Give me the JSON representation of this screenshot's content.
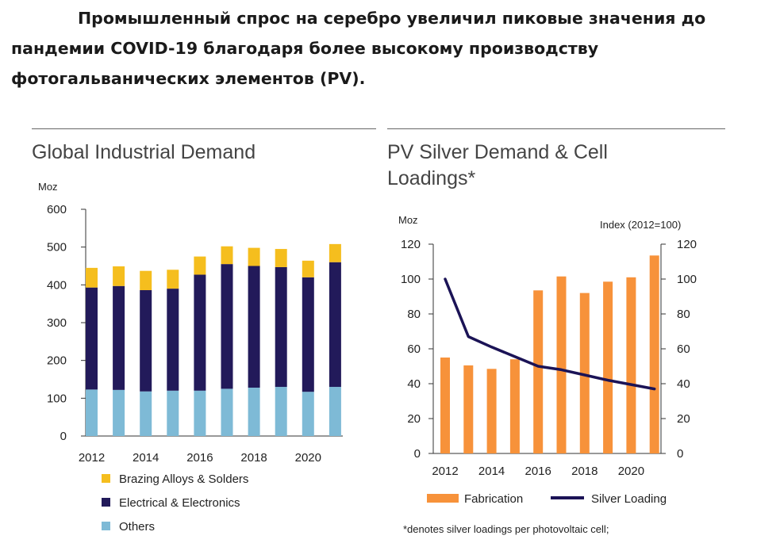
{
  "headline": "Промышленный спрос на серебро увеличил пиковые значения до пандемии COVID-19 благодаря более высокому производству фотогальванических элементов (PV).",
  "headline_lines": [
    "Промышленный спрос на серебро увеличил пиковые значения до",
    "пандемии COVID-19 благодаря более высокому производству",
    "фотогальванических элементов (PV)."
  ],
  "colors": {
    "brazing": "#f5be1e",
    "electrical": "#221a5a",
    "others": "#7ebad6",
    "fabrication": "#f7923a",
    "silver_loading": "#1b1356",
    "axis": "#333333",
    "rule": "#666666"
  },
  "chart_data": [
    {
      "type": "bar",
      "stacked": true,
      "title": "Global Industrial Demand",
      "ylabel": "Moz",
      "ylim": [
        0,
        600
      ],
      "yticks": [
        0,
        100,
        200,
        300,
        400,
        500,
        600
      ],
      "xtick_labels": [
        "2012",
        "2014",
        "2016",
        "2018",
        "2020"
      ],
      "categories": [
        2012,
        2013,
        2014,
        2015,
        2016,
        2017,
        2018,
        2019,
        2020,
        2021
      ],
      "series": [
        {
          "name": "Others",
          "color": "#7ebad6",
          "values": [
            123,
            122,
            118,
            120,
            120,
            125,
            128,
            130,
            117,
            130
          ]
        },
        {
          "name": "Electrical & Electronics",
          "color": "#221a5a",
          "values": [
            270,
            275,
            268,
            270,
            307,
            330,
            322,
            317,
            303,
            330
          ]
        },
        {
          "name": "Brazing Alloys & Solders",
          "color": "#f5be1e",
          "values": [
            52,
            52,
            51,
            50,
            48,
            47,
            48,
            48,
            44,
            48
          ]
        }
      ],
      "legend": [
        "Brazing Alloys & Solders",
        "Electrical & Electronics",
        "Others"
      ],
      "legend_position": "bottom"
    },
    {
      "type": "bar+line",
      "title": "PV Silver Demand & Cell Loadings*",
      "title_lines": [
        "PV Silver Demand & Cell",
        "Loadings*"
      ],
      "ylabel_left": "Moz",
      "ylabel_right": "Index (2012=100)",
      "ylim_left": [
        0,
        120
      ],
      "ylim_right": [
        0,
        120
      ],
      "yticks": [
        0,
        20,
        40,
        60,
        80,
        100,
        120
      ],
      "xtick_labels": [
        "2012",
        "2014",
        "2016",
        "2018",
        "2020"
      ],
      "categories": [
        2012,
        2013,
        2014,
        2015,
        2016,
        2017,
        2018,
        2019,
        2020,
        2021
      ],
      "series": [
        {
          "name": "Fabrication",
          "type": "bar",
          "axis": "left",
          "color": "#f7923a",
          "values": [
            55,
            50.5,
            48.5,
            54,
            93.5,
            101.5,
            92,
            98.5,
            101,
            113.5
          ]
        },
        {
          "name": "Silver Loading",
          "type": "line",
          "axis": "right",
          "color": "#1b1356",
          "values": [
            100,
            67,
            61,
            55.5,
            50,
            48,
            45,
            42,
            39.5,
            37
          ]
        }
      ],
      "legend": [
        "Fabrication",
        "Silver Loading"
      ],
      "legend_position": "bottom",
      "footnote": "*denotes silver loadings per photovoltaic cell;"
    }
  ]
}
